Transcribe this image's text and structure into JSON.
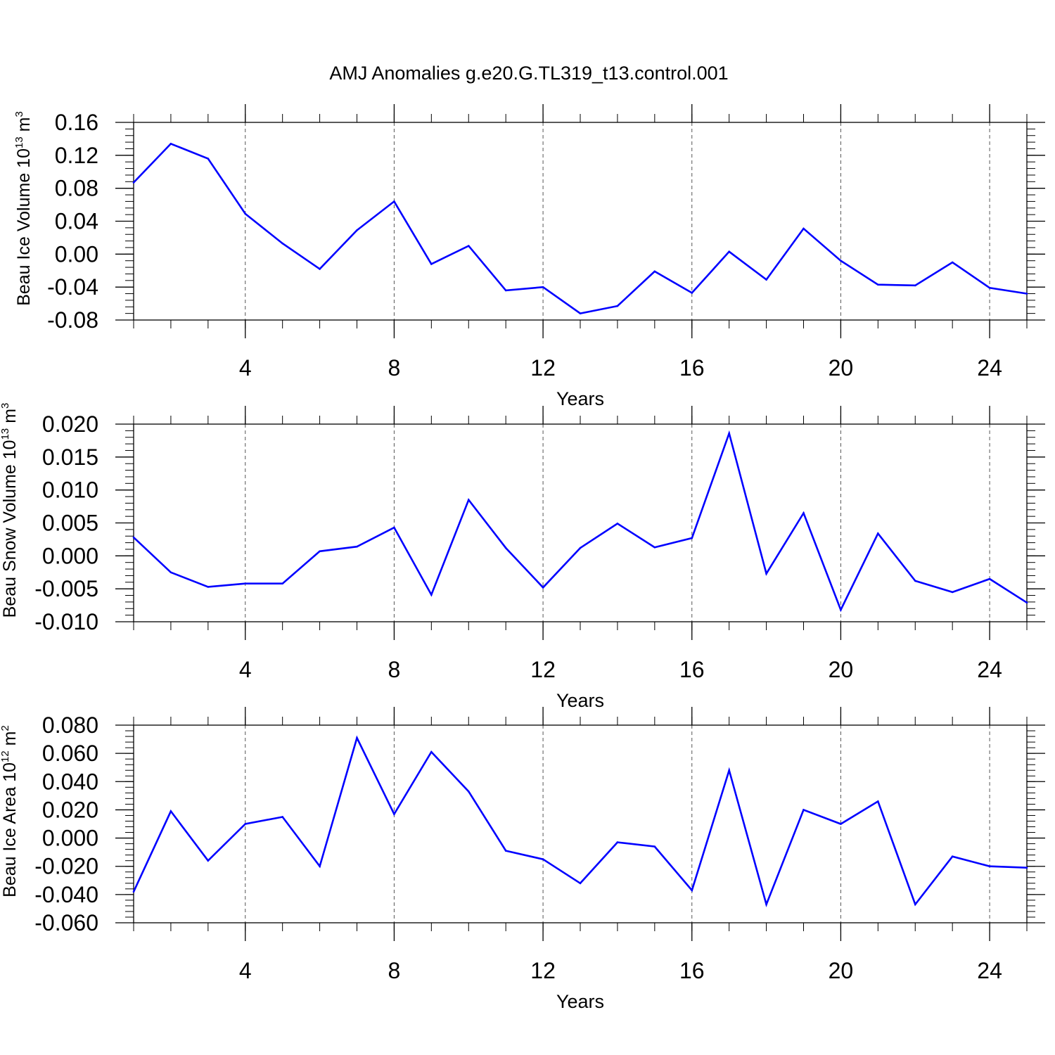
{
  "chart_data": [
    {
      "type": "line",
      "title": "AMJ Anomalies g.e20.G.TL319_t13.control.001",
      "xlabel": "Years",
      "ylabel": {
        "prefix": "Beau Ice Volume 10",
        "exponent": "13",
        "unit": "m",
        "unit_exponent": "3"
      },
      "xlim": [
        1,
        25
      ],
      "ylim": [
        -0.08,
        0.16
      ],
      "x_ticks": [
        4,
        8,
        12,
        16,
        20,
        24
      ],
      "x_tick_labels": [
        "4",
        "8",
        "12",
        "16",
        "20",
        "24"
      ],
      "y_ticks": [
        -0.08,
        -0.04,
        0.0,
        0.04,
        0.08,
        0.12,
        0.16
      ],
      "y_tick_labels": [
        "-0.08",
        "-0.04",
        "0.00",
        "0.04",
        "0.08",
        "0.12",
        "0.16"
      ],
      "x_minor_step": 1,
      "y_minor_step": 0.008,
      "vertical_grid": "dashed, at major x ticks",
      "series": [
        {
          "color": "#0000ff",
          "x": [
            1,
            2,
            3,
            4,
            5,
            6,
            7,
            8,
            9,
            10,
            11,
            12,
            13,
            14,
            15,
            16,
            17,
            18,
            19,
            20,
            21,
            22,
            23,
            24,
            25
          ],
          "values": [
            0.087,
            0.134,
            0.116,
            0.049,
            0.013,
            -0.018,
            0.029,
            0.064,
            -0.012,
            0.01,
            -0.044,
            -0.04,
            -0.072,
            -0.063,
            -0.021,
            -0.047,
            0.003,
            -0.031,
            0.031,
            -0.008,
            -0.037,
            -0.038,
            -0.01,
            -0.041,
            -0.048
          ]
        }
      ]
    },
    {
      "type": "line",
      "title": "",
      "xlabel": "Years",
      "ylabel": {
        "prefix": "Beau Snow Volume 10",
        "exponent": "13",
        "unit": "m",
        "unit_exponent": "3"
      },
      "xlim": [
        1,
        25
      ],
      "ylim": [
        -0.01,
        0.02
      ],
      "x_ticks": [
        4,
        8,
        12,
        16,
        20,
        24
      ],
      "x_tick_labels": [
        "4",
        "8",
        "12",
        "16",
        "20",
        "24"
      ],
      "y_ticks": [
        -0.01,
        -0.005,
        0.0,
        0.005,
        0.01,
        0.015,
        0.02
      ],
      "y_tick_labels": [
        "-0.010",
        "-0.005",
        "0.000",
        "0.005",
        "0.010",
        "0.015",
        "0.020"
      ],
      "x_minor_step": 1,
      "y_minor_step": 0.001,
      "vertical_grid": "dashed, at major x ticks",
      "series": [
        {
          "color": "#0000ff",
          "x": [
            1,
            2,
            3,
            4,
            5,
            6,
            7,
            8,
            9,
            10,
            11,
            12,
            13,
            14,
            15,
            16,
            17,
            18,
            19,
            20,
            21,
            22,
            23,
            24,
            25
          ],
          "values": [
            0.0028,
            -0.0025,
            -0.0047,
            -0.0042,
            -0.0042,
            0.0007,
            0.0014,
            0.0043,
            -0.0059,
            0.0085,
            0.0012,
            -0.0048,
            0.0012,
            0.0049,
            0.0013,
            0.0027,
            0.0186,
            -0.0027,
            0.0065,
            -0.0082,
            0.0034,
            -0.0038,
            -0.0055,
            -0.0035,
            -0.0071
          ]
        }
      ]
    },
    {
      "type": "line",
      "title": "",
      "xlabel": "Years",
      "ylabel": {
        "prefix": "Beau Ice Area 10",
        "exponent": "12",
        "unit": "m",
        "unit_exponent": "2"
      },
      "xlim": [
        1,
        25
      ],
      "ylim": [
        -0.06,
        0.08
      ],
      "x_ticks": [
        4,
        8,
        12,
        16,
        20,
        24
      ],
      "x_tick_labels": [
        "4",
        "8",
        "12",
        "16",
        "20",
        "24"
      ],
      "y_ticks": [
        -0.06,
        -0.04,
        -0.02,
        0.0,
        0.02,
        0.04,
        0.06,
        0.08
      ],
      "y_tick_labels": [
        "-0.060",
        "-0.040",
        "-0.020",
        "0.000",
        "0.020",
        "0.040",
        "0.060",
        "0.080"
      ],
      "x_minor_step": 1,
      "y_minor_step": 0.004,
      "vertical_grid": "dashed, at major x ticks",
      "series": [
        {
          "color": "#0000ff",
          "x": [
            1,
            2,
            3,
            4,
            5,
            6,
            7,
            8,
            9,
            10,
            11,
            12,
            13,
            14,
            15,
            16,
            17,
            18,
            19,
            20,
            21,
            22,
            23,
            24,
            25
          ],
          "values": [
            -0.038,
            0.019,
            -0.016,
            0.01,
            0.015,
            -0.02,
            0.071,
            0.017,
            0.061,
            0.033,
            -0.009,
            -0.015,
            -0.032,
            -0.003,
            -0.006,
            -0.037,
            0.048,
            -0.047,
            0.02,
            0.01,
            0.026,
            -0.047,
            -0.013,
            -0.02,
            -0.021
          ]
        }
      ]
    }
  ]
}
